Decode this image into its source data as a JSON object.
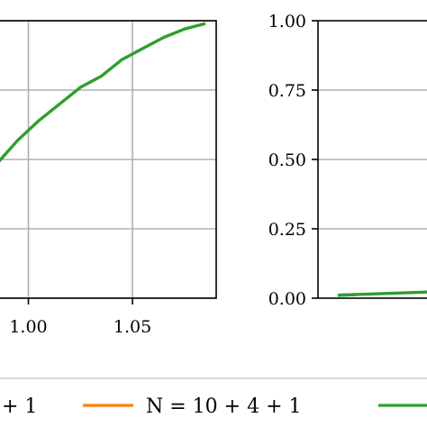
{
  "chart_data": [
    {
      "type": "line",
      "title": "",
      "xlabel": "",
      "ylabel": "",
      "grid": true,
      "xlim": [
        0.9855,
        1.0902
      ],
      "ylim": [
        0.0,
        1.0
      ],
      "x_ticks": [
        1.0,
        1.05
      ],
      "x_tick_labels": [
        "1.00",
        "1.05"
      ],
      "y_ticks": [
        0.0,
        0.25,
        0.5,
        0.75,
        1.0
      ],
      "series": [
        {
          "color": "#2ca02c",
          "x": [
            0.9855,
            0.995,
            1.005,
            1.015,
            1.025,
            1.035,
            1.045,
            1.055,
            1.065,
            1.075,
            1.085
          ],
          "y": [
            0.49,
            0.57,
            0.64,
            0.7,
            0.76,
            0.8,
            0.86,
            0.9,
            0.94,
            0.97,
            0.99
          ]
        }
      ]
    },
    {
      "type": "line",
      "title": "",
      "xlabel": "",
      "ylabel": "",
      "grid": true,
      "ylim": [
        0.0,
        1.0
      ],
      "y_ticks": [
        0.0,
        0.25,
        0.5,
        0.75,
        1.0
      ],
      "y_tick_labels": [
        "0.00",
        "0.25",
        "0.50",
        "0.75",
        "1.00"
      ],
      "series": [
        {
          "color": "#1f77b4",
          "x": [
            0.0,
            0.2
          ],
          "y": [
            0.01,
            0.013
          ]
        },
        {
          "color": "#2ca02c",
          "x": [
            0.0,
            1.0
          ],
          "y": [
            0.011,
            0.022
          ]
        }
      ]
    }
  ],
  "legend": {
    "placement": "bottom",
    "entries": [
      {
        "label": "+ 1",
        "color": ""
      },
      {
        "label": "N = 10 + 4 + 1",
        "color": "#ff7f0e"
      },
      {
        "label": "",
        "color": "#2ca02c"
      }
    ]
  }
}
